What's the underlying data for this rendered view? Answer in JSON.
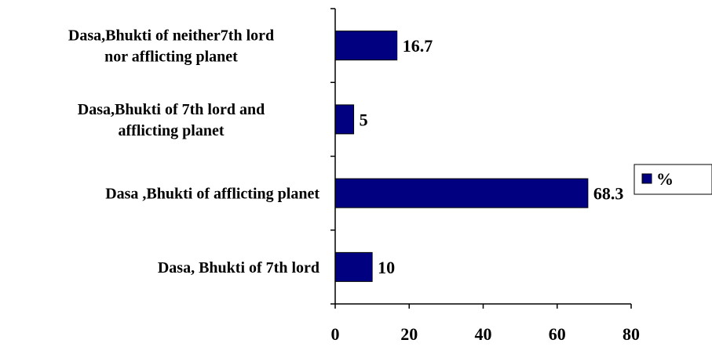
{
  "chart_data": {
    "type": "bar",
    "orientation": "horizontal",
    "categories": [
      [
        "Dasa,Bhukti of neither7th lord",
        "nor afflicting planet"
      ],
      [
        "Dasa,Bhukti of 7th lord and",
        "afflicting planet"
      ],
      [
        "Dasa ,Bhukti of afflicting planet"
      ],
      [
        "Dasa, Bhukti of 7th lord"
      ]
    ],
    "series": [
      {
        "name": "%",
        "values": [
          16.7,
          5,
          68.3,
          10
        ]
      }
    ],
    "data_labels": [
      "16.7",
      "5",
      "68.3",
      "10"
    ],
    "x_ticks": [
      "0",
      "20",
      "40",
      "60",
      "80"
    ],
    "xlim": [
      0,
      80
    ],
    "grid": false,
    "legend_position": "right",
    "bar_color": "#000080"
  }
}
